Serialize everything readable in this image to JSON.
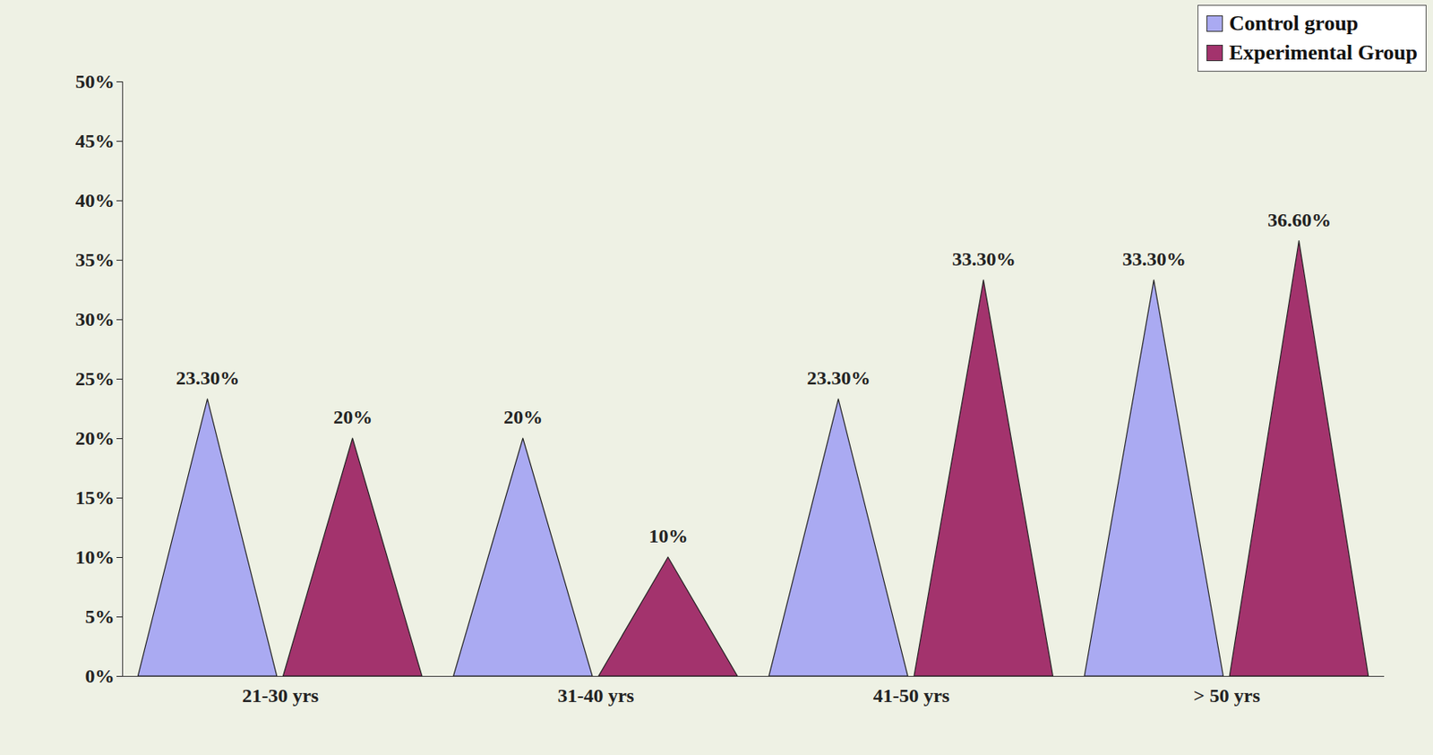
{
  "chart_data": {
    "type": "bar",
    "marker": "cone",
    "categories": [
      "21-30 yrs",
      "31-40 yrs",
      "41-50 yrs",
      "> 50 yrs"
    ],
    "series": [
      {
        "name": "Control group",
        "color": "#aaaaf2",
        "values": [
          23.3,
          20,
          23.3,
          33.3
        ],
        "value_labels": [
          "23.30%",
          "20%",
          "23.30%",
          "33.30%"
        ]
      },
      {
        "name": "Experimental Group",
        "color": "#a3336d",
        "values": [
          20,
          10,
          33.3,
          36.6
        ],
        "value_labels": [
          "20%",
          "10%",
          "33.30%",
          "36.60%"
        ]
      }
    ],
    "ylim": [
      0,
      50
    ],
    "yticks": [
      {
        "value": 0,
        "label": "0%"
      },
      {
        "value": 5,
        "label": "5%"
      },
      {
        "value": 10,
        "label": "10%"
      },
      {
        "value": 15,
        "label": "15%"
      },
      {
        "value": 20,
        "label": "20%"
      },
      {
        "value": 25,
        "label": "25%"
      },
      {
        "value": 30,
        "label": "30%"
      },
      {
        "value": 35,
        "label": "35%"
      },
      {
        "value": 40,
        "label": "40%"
      },
      {
        "value": 45,
        "label": "45%"
      },
      {
        "value": 50,
        "label": "50%"
      }
    ],
    "grid": false,
    "legend": "top-right",
    "data_labels": true
  }
}
